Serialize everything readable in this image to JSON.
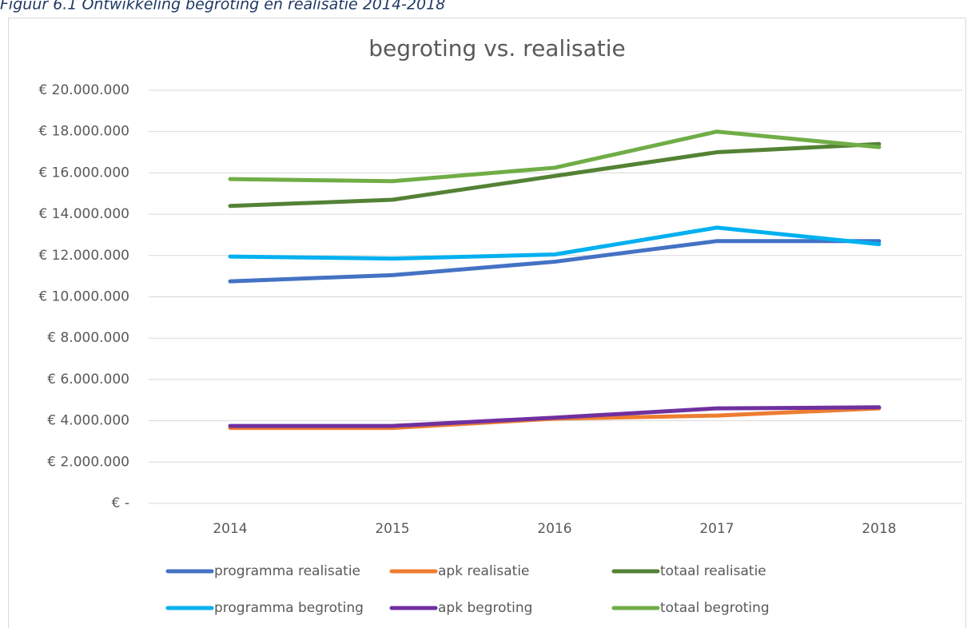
{
  "caption": "Figuur 6.1 Ontwikkeling begroting en realisatie 2014-2018",
  "chart_data": {
    "type": "line",
    "title": "begroting vs. realisatie",
    "categories": [
      "2014",
      "2015",
      "2016",
      "2017",
      "2018"
    ],
    "series": [
      {
        "name": "programma realisatie",
        "color": "#4472c4",
        "values": [
          10750000,
          11050000,
          11700000,
          12700000,
          12700000
        ]
      },
      {
        "name": "apk realisatie",
        "color": "#ed7d31",
        "values": [
          3650000,
          3650000,
          4100000,
          4250000,
          4600000
        ]
      },
      {
        "name": "totaal realisatie",
        "color": "#548235",
        "values": [
          14400000,
          14700000,
          15850000,
          17000000,
          17400000
        ]
      },
      {
        "name": "programma begroting",
        "color": "#00b0f0",
        "values": [
          11950000,
          11850000,
          12050000,
          13350000,
          12550000
        ]
      },
      {
        "name": "apk begroting",
        "color": "#7030a0",
        "values": [
          3750000,
          3750000,
          4150000,
          4600000,
          4650000
        ]
      },
      {
        "name": "totaal begroting",
        "color": "#70ad47",
        "values": [
          15700000,
          15600000,
          16250000,
          18000000,
          17250000
        ]
      }
    ],
    "ylim": [
      0,
      20000000
    ],
    "yticks": [
      {
        "value": 0,
        "label": "€ -"
      },
      {
        "value": 2000000,
        "label": "€ 2.000.000"
      },
      {
        "value": 4000000,
        "label": "€ 4.000.000"
      },
      {
        "value": 6000000,
        "label": "€ 6.000.000"
      },
      {
        "value": 8000000,
        "label": "€ 8.000.000"
      },
      {
        "value": 10000000,
        "label": "€ 10.000.000"
      },
      {
        "value": 12000000,
        "label": "€ 12.000.000"
      },
      {
        "value": 14000000,
        "label": "€ 14.000.000"
      },
      {
        "value": 16000000,
        "label": "€ 16.000.000"
      },
      {
        "value": 18000000,
        "label": "€ 18.000.000"
      },
      {
        "value": 20000000,
        "label": "€ 20.000.000"
      }
    ],
    "grid": true,
    "legend": "bottom"
  }
}
